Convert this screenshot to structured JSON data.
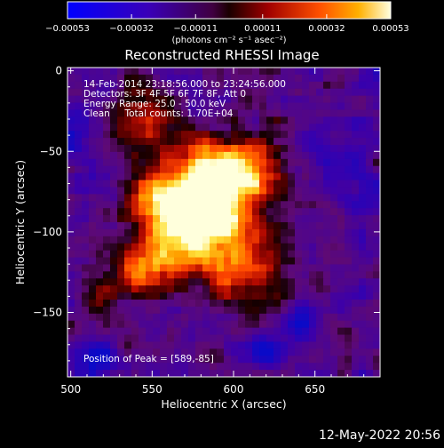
{
  "chart_data": {
    "type": "heatmap",
    "title": "Reconstructed RHESSI Image",
    "xlabel": "Heliocentric X (arcsec)",
    "ylabel": "Heliocentric Y (arcsec)",
    "xlim": [
      498,
      690
    ],
    "ylim": [
      -190,
      2
    ],
    "xticks": [
      500,
      550,
      600,
      650
    ],
    "yticks": [
      0,
      -50,
      -100,
      -150
    ],
    "xtick_labels": [
      "500",
      "550",
      "600",
      "650"
    ],
    "ytick_labels": [
      "0",
      "−50",
      "−100",
      "−150"
    ],
    "colorbar": {
      "units": "(photons cm⁻² s⁻¹ asec⁻²)",
      "range": [
        -0.00053,
        0.00053
      ],
      "ticks": [
        -0.00053,
        -0.00032,
        -0.00011,
        0.00011,
        0.00032,
        0.00053
      ],
      "tick_labels": [
        "−0.00053",
        "−0.00032",
        "−0.00011",
        "0.00011",
        "0.00032",
        "0.00053"
      ]
    },
    "annotations": [
      "14-Feb-2014 23:18:56.000 to 23:24:56.000",
      "Detectors: 3F 4F 5F 6F 7F 8F, Att 0",
      "Energy Range: 25.0 - 50.0 keV",
      "Clean     Total counts: 1.70E+04"
    ],
    "peak_label": "Position of Peak = [589,-85]",
    "peak": [
      589,
      -85
    ]
  },
  "footer_date": "12-May-2022 20:56"
}
